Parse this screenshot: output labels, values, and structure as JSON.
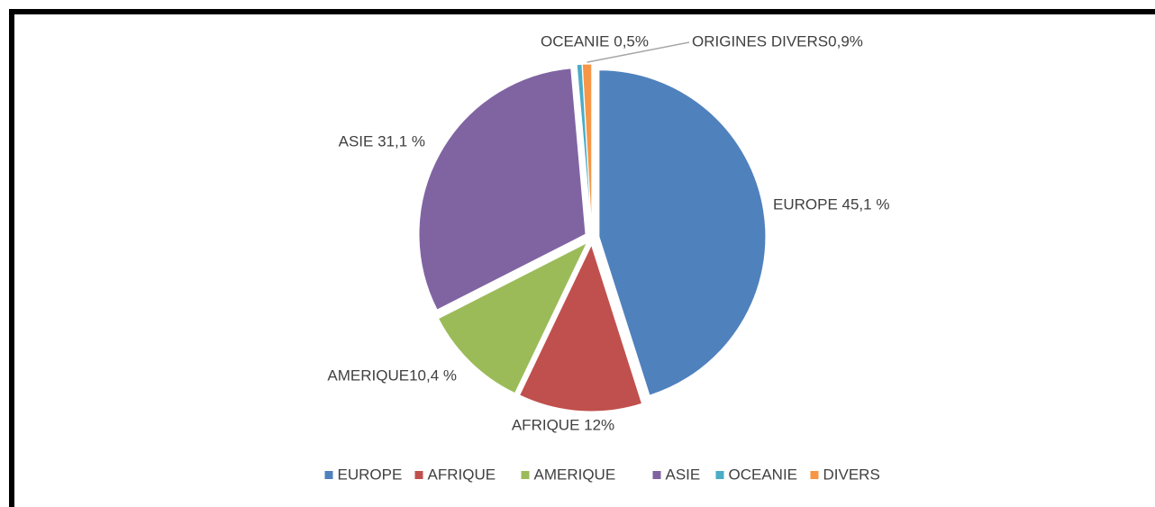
{
  "chart_data": {
    "type": "pie",
    "categories": [
      "EUROPE",
      "AFRIQUE",
      "AMERIQUE",
      "ASIE",
      "OCEANIE",
      "DIVERS"
    ],
    "values": [
      45.1,
      12,
      10.4,
      31.1,
      0.5,
      0.9
    ],
    "value_labels": [
      "EUROPE 45,1 %",
      "AFRIQUE 12%",
      "AMERIQUE10,4 %",
      "ASIE 31,1 %",
      "OCEANIE 0,5%",
      "ORIGINES DIVERS0,9%"
    ],
    "colors": [
      "#4f81bd",
      "#c0504d",
      "#9bbb59",
      "#8064a2",
      "#4bacc6",
      "#f79646"
    ],
    "legend": "bottom"
  }
}
